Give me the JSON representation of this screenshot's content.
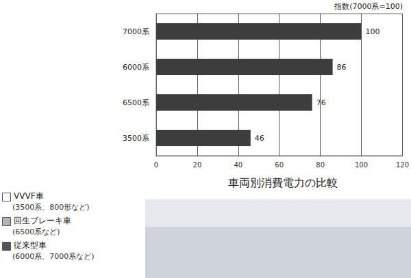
{
  "chart_data": {
    "type": "bar",
    "orientation": "horizontal",
    "title": "車両別消費電力の比較",
    "xlabel": "指数(7000系=100)",
    "categories": [
      "7000系",
      "6000系",
      "6500系",
      "3500系"
    ],
    "values": [
      100,
      86,
      76,
      46
    ],
    "color": "#3d3d3d",
    "xlim": [
      0,
      120
    ],
    "xticks": [
      0,
      20,
      40,
      60,
      80,
      100,
      120
    ],
    "grid": true,
    "data_labels": true,
    "key": [
      {
        "label": "VVVF車",
        "detail": "(3500系、800形など)",
        "color": "#ffffff"
      },
      {
        "label": "回生ブレーキ車",
        "detail": "(6500系など)",
        "color": "#b4b4b4"
      },
      {
        "label": "従来型車",
        "detail": "(6000系、7000系など)",
        "color": "#555555"
      }
    ]
  }
}
